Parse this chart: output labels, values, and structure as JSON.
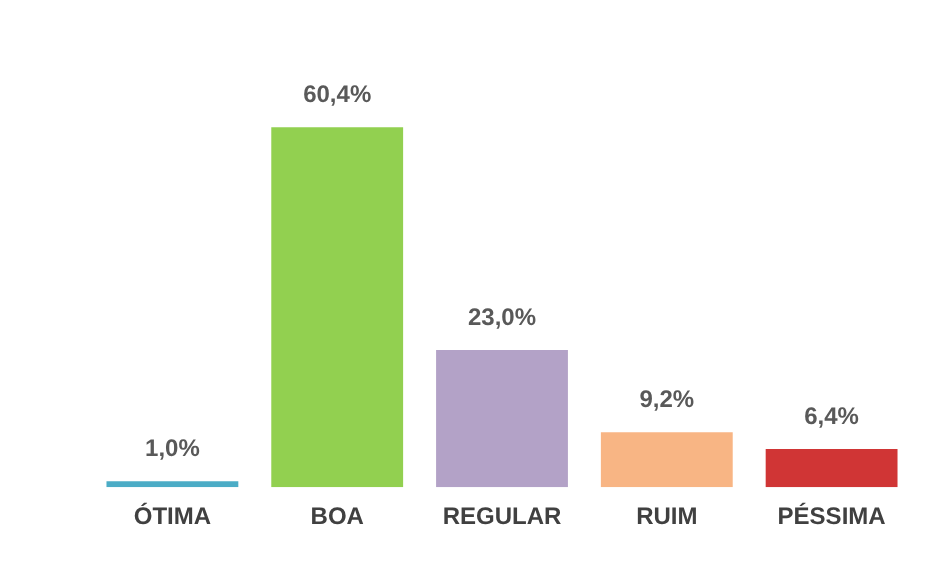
{
  "chart_data": {
    "type": "bar",
    "categories": [
      "ÓTIMA",
      "BOA",
      "REGULAR",
      "RUIM",
      "PÉSSIMA"
    ],
    "values": [
      1.0,
      60.4,
      23.0,
      9.2,
      6.4
    ],
    "colors": [
      "#4bacc6",
      "#92d050",
      "#b3a2c7",
      "#f8b584",
      "#d03535"
    ],
    "value_labels": [
      "1,0%",
      "60,4%",
      "23,0%",
      "9,2%",
      "6,4%"
    ],
    "grid": false,
    "legend": false
  }
}
